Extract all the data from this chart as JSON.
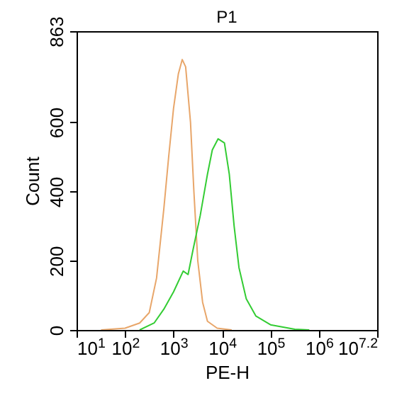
{
  "chart_data": {
    "type": "line",
    "title": "P1",
    "xlabel": "PE-H",
    "ylabel": "Count",
    "log": "x",
    "grid": false,
    "marker": "none",
    "line_style": "solid",
    "xlim": [
      10,
      15848932
    ],
    "ylim": [
      0,
      863
    ],
    "xticks": [
      {
        "value": 10,
        "label": "10$^{1}$"
      },
      {
        "value": 100,
        "label": "10$^{2}$"
      },
      {
        "value": 1000,
        "label": "10$^{3}$"
      },
      {
        "value": 10000,
        "label": "10$^{4}$"
      },
      {
        "value": 100000,
        "label": "10$^{5}$"
      },
      {
        "value": 1000000,
        "label": "10$^{6}$"
      },
      {
        "value": 15848932,
        "label": "10$^{7.2}$"
      }
    ],
    "yticks": [
      0,
      200,
      400,
      600,
      863
    ],
    "series": [
      {
        "color": "#e8a66a",
        "x": [
          32,
          100,
          200,
          316,
          447,
          631,
          794,
          1000,
          1259,
          1514,
          1778,
          2239,
          2630,
          3162,
          3981,
          5012,
          7943,
          15849
        ],
        "values": [
          0,
          5,
          20,
          50,
          150,
          350,
          500,
          640,
          740,
          781,
          760,
          600,
          400,
          200,
          80,
          25,
          5,
          0
        ]
      },
      {
        "color": "#33cc33",
        "x": [
          200,
          398,
          631,
          1000,
          1585,
          1995,
          2512,
          3548,
          5012,
          6310,
          8318,
          11220,
          14125,
          17783,
          22387,
          31623,
          50119,
          100000,
          316228,
          630957
        ],
        "values": [
          0,
          20,
          60,
          110,
          170,
          160,
          230,
          330,
          450,
          520,
          552,
          540,
          450,
          300,
          180,
          90,
          40,
          15,
          2,
          0
        ]
      }
    ]
  }
}
